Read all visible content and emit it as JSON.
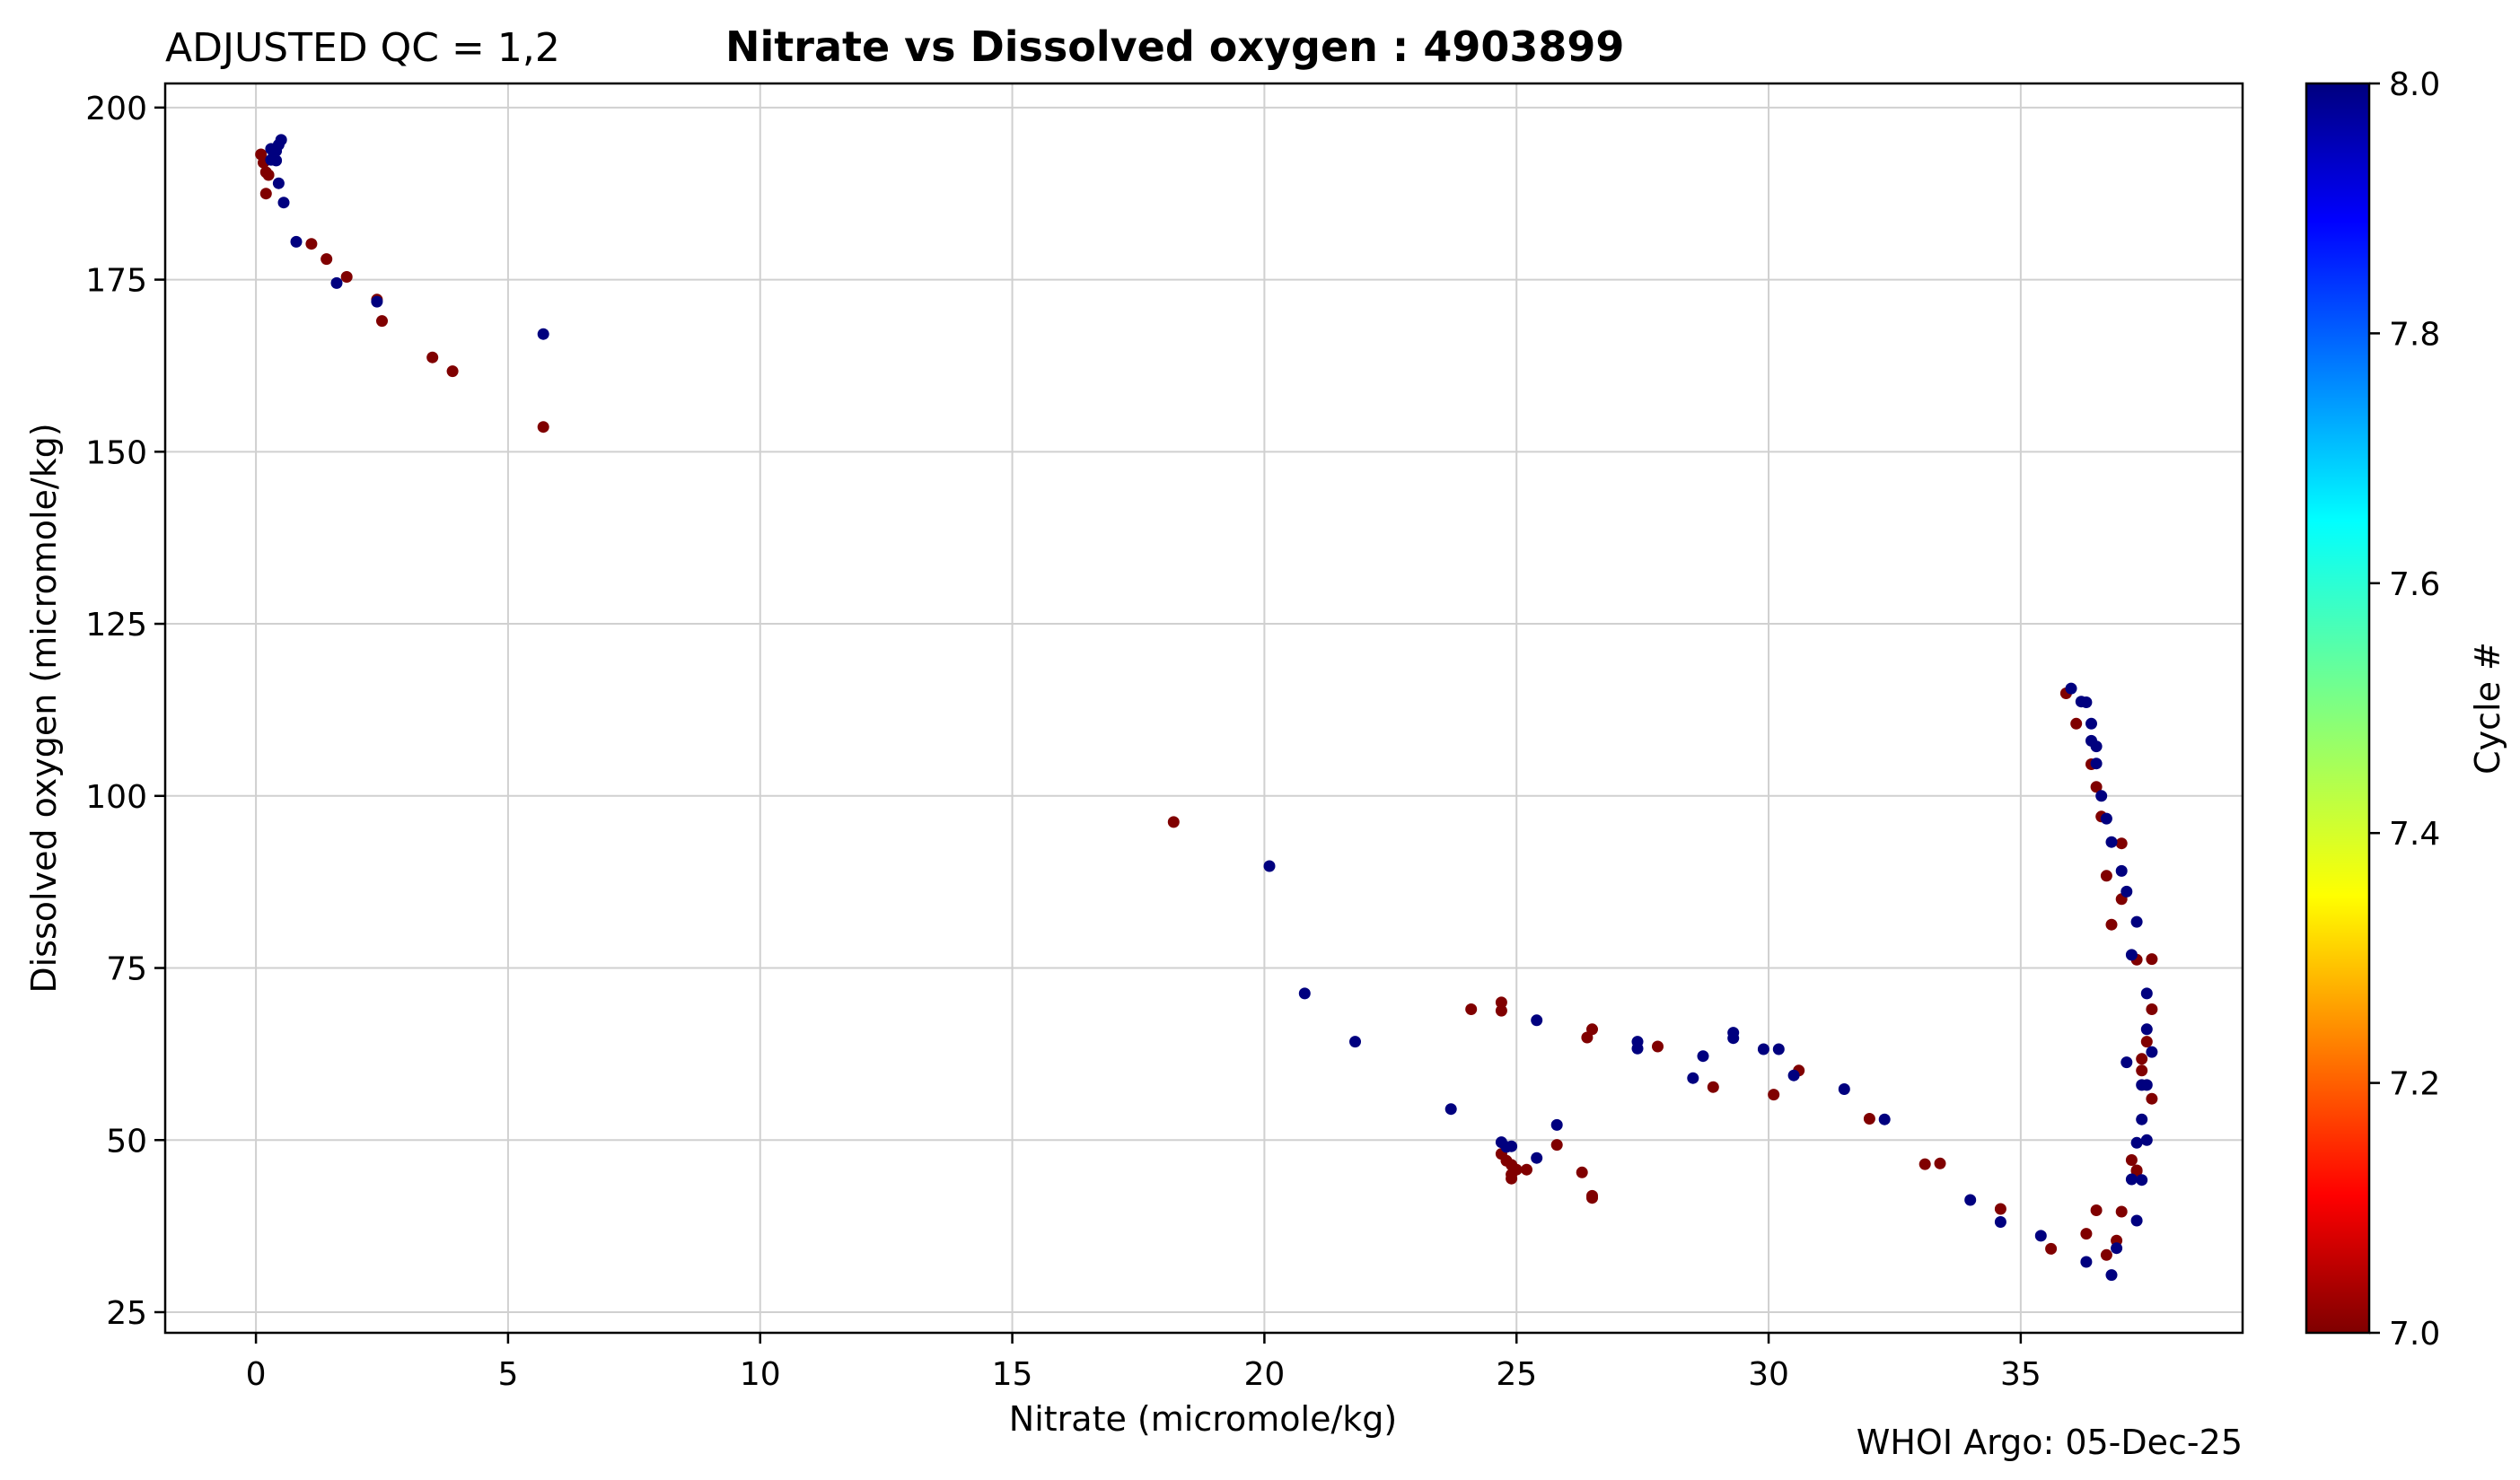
{
  "chart_data": {
    "type": "scatter",
    "title_left": "ADJUSTED QC = 1,2",
    "title": "Nitrate vs Dissolved oxygen : 4903899",
    "xlabel": "Nitrate  (micromole/kg)",
    "ylabel": "Dissolved oxygen  (micromole/kg)",
    "xlim": [
      -1.8,
      39.4
    ],
    "ylim": [
      22,
      203.5
    ],
    "xticks": [
      0,
      5,
      10,
      15,
      20,
      25,
      30,
      35
    ],
    "yticks": [
      25,
      50,
      75,
      100,
      125,
      150,
      175,
      200
    ],
    "grid": true,
    "credit": "WHOI Argo: 05-Dec-25",
    "colorbar": {
      "label": "Cycle #",
      "range": [
        7.0,
        8.0
      ],
      "ticks": [
        "7.0",
        "7.2",
        "7.4",
        "7.6",
        "7.8",
        "8.0"
      ],
      "colormap": "jet"
    },
    "series": [
      {
        "name": "Cycle 7",
        "color": "#800000",
        "points": [
          [
            0.1,
            193.2
          ],
          [
            0.15,
            192.0
          ],
          [
            0.2,
            190.6
          ],
          [
            0.25,
            190.2
          ],
          [
            0.2,
            187.5
          ],
          [
            1.1,
            180.2
          ],
          [
            1.4,
            178.0
          ],
          [
            1.8,
            175.4
          ],
          [
            2.4,
            172.1
          ],
          [
            2.5,
            169.0
          ],
          [
            3.5,
            163.7
          ],
          [
            3.9,
            161.7
          ],
          [
            5.7,
            153.6
          ],
          [
            18.2,
            96.2
          ],
          [
            24.1,
            69.0
          ],
          [
            24.7,
            70.0
          ],
          [
            24.7,
            68.8
          ],
          [
            24.7,
            48.0
          ],
          [
            24.8,
            47.0
          ],
          [
            24.9,
            46.4
          ],
          [
            25.0,
            45.7
          ],
          [
            24.9,
            45.0
          ],
          [
            24.9,
            44.4
          ],
          [
            25.2,
            45.7
          ],
          [
            25.8,
            49.3
          ],
          [
            26.3,
            45.3
          ],
          [
            26.4,
            64.9
          ],
          [
            26.5,
            66.1
          ],
          [
            26.5,
            41.9
          ],
          [
            26.5,
            41.6
          ],
          [
            27.8,
            63.6
          ],
          [
            28.9,
            57.7
          ],
          [
            30.1,
            56.6
          ],
          [
            30.6,
            60.1
          ],
          [
            32.0,
            53.1
          ],
          [
            33.1,
            46.5
          ],
          [
            33.4,
            46.6
          ],
          [
            34.6,
            40.0
          ],
          [
            35.6,
            34.2
          ],
          [
            35.9,
            114.9
          ],
          [
            36.1,
            110.5
          ],
          [
            36.4,
            104.6
          ],
          [
            36.5,
            101.3
          ],
          [
            36.6,
            97.0
          ],
          [
            36.7,
            88.4
          ],
          [
            36.8,
            81.3
          ],
          [
            37.0,
            85.0
          ],
          [
            37.0,
            93.1
          ],
          [
            36.5,
            39.8
          ],
          [
            36.7,
            33.3
          ],
          [
            36.9,
            35.4
          ],
          [
            37.0,
            39.6
          ],
          [
            36.3,
            36.4
          ],
          [
            37.2,
            47.1
          ],
          [
            37.3,
            45.5
          ],
          [
            37.3,
            45.6
          ],
          [
            37.3,
            76.2
          ],
          [
            37.4,
            60.1
          ],
          [
            37.4,
            61.8
          ],
          [
            37.5,
            64.3
          ],
          [
            37.6,
            56.0
          ],
          [
            37.6,
            69.0
          ],
          [
            37.6,
            76.3
          ]
        ]
      },
      {
        "name": "Cycle 8",
        "color": "#00007f",
        "points": [
          [
            0.3,
            192.4
          ],
          [
            0.3,
            194.0
          ],
          [
            0.35,
            193.5
          ],
          [
            0.4,
            192.3
          ],
          [
            0.45,
            194.6
          ],
          [
            0.5,
            195.3
          ],
          [
            0.4,
            193.7
          ],
          [
            0.45,
            189.0
          ],
          [
            0.55,
            186.2
          ],
          [
            0.8,
            180.5
          ],
          [
            1.6,
            174.5
          ],
          [
            2.4,
            171.8
          ],
          [
            5.7,
            167.1
          ],
          [
            20.1,
            89.8
          ],
          [
            20.8,
            71.3
          ],
          [
            21.8,
            64.3
          ],
          [
            23.7,
            54.5
          ],
          [
            24.7,
            49.7
          ],
          [
            24.8,
            49.0
          ],
          [
            24.9,
            49.1
          ],
          [
            25.4,
            67.4
          ],
          [
            25.4,
            47.4
          ],
          [
            25.8,
            52.2
          ],
          [
            27.4,
            64.3
          ],
          [
            27.4,
            63.3
          ],
          [
            28.5,
            59.0
          ],
          [
            28.7,
            62.2
          ],
          [
            29.3,
            65.6
          ],
          [
            29.3,
            64.8
          ],
          [
            29.9,
            63.2
          ],
          [
            30.2,
            63.2
          ],
          [
            30.5,
            59.4
          ],
          [
            31.5,
            57.4
          ],
          [
            32.3,
            53.0
          ],
          [
            34.0,
            41.3
          ],
          [
            34.6,
            38.1
          ],
          [
            35.4,
            36.1
          ],
          [
            36.0,
            115.6
          ],
          [
            36.2,
            113.7
          ],
          [
            36.3,
            113.6
          ],
          [
            36.4,
            110.5
          ],
          [
            36.4,
            108.0
          ],
          [
            36.5,
            107.2
          ],
          [
            36.5,
            104.7
          ],
          [
            36.6,
            100.0
          ],
          [
            36.7,
            96.7
          ],
          [
            36.8,
            93.3
          ],
          [
            37.0,
            89.1
          ],
          [
            37.1,
            86.1
          ],
          [
            37.2,
            76.9
          ],
          [
            37.3,
            81.7
          ],
          [
            37.1,
            61.3
          ],
          [
            37.2,
            44.3
          ],
          [
            37.3,
            49.6
          ],
          [
            37.3,
            38.3
          ],
          [
            37.4,
            44.2
          ],
          [
            37.4,
            53.0
          ],
          [
            37.4,
            58.0
          ],
          [
            37.5,
            50.0
          ],
          [
            37.5,
            66.1
          ],
          [
            37.5,
            71.3
          ],
          [
            37.6,
            62.8
          ],
          [
            37.5,
            58.0
          ],
          [
            36.3,
            32.3
          ],
          [
            36.8,
            30.4
          ],
          [
            36.9,
            34.3
          ]
        ]
      }
    ]
  }
}
